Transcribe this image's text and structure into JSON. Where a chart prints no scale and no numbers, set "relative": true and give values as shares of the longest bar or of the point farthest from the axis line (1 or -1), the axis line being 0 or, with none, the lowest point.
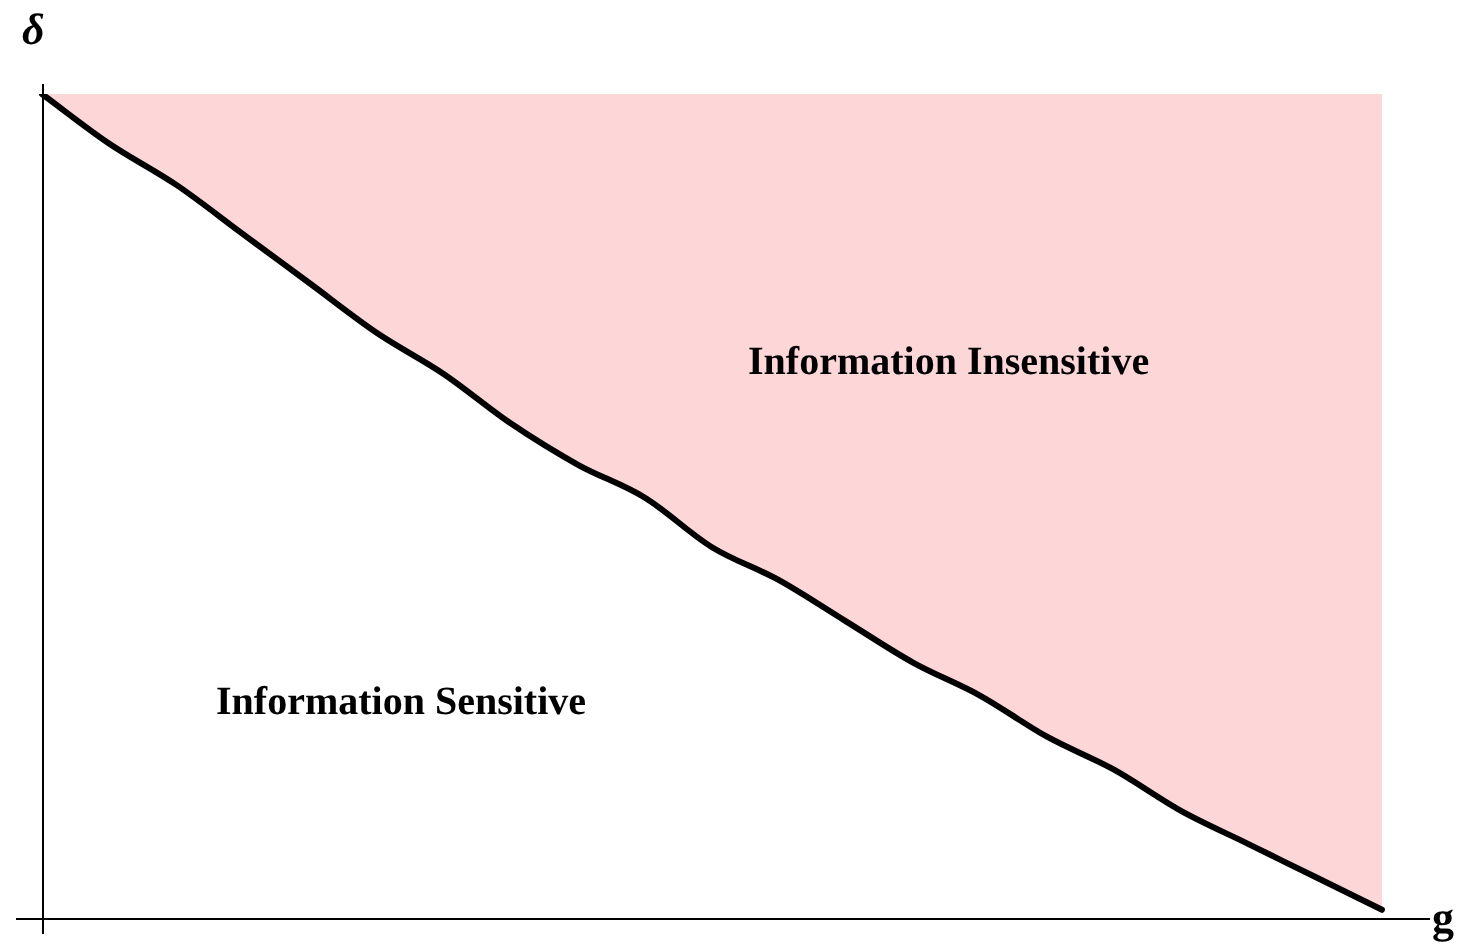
{
  "chart_data": {
    "type": "line",
    "relative": true,
    "xlabel": "g",
    "ylabel": "δ",
    "categories": [
      null,
      null,
      null,
      null,
      null,
      null,
      null,
      null,
      null,
      null,
      null,
      null,
      null,
      null,
      null,
      null,
      null,
      null,
      null,
      null,
      null
    ],
    "series": [
      {
        "color": "#000000",
        "values": [
          1,
          0.94,
          0.89,
          0.83,
          0.77,
          0.71,
          0.66,
          0.6,
          0.55,
          0.51,
          0.45,
          0.41,
          0.36,
          0.31,
          0.27,
          0.22,
          0.18,
          0.13,
          0.09,
          0.05,
          0.01
        ],
        "lower": [
          1,
          0.94,
          0.89,
          0.83,
          0.77,
          0.71,
          0.66,
          0.6,
          0.55,
          0.51,
          0.45,
          0.41,
          0.36,
          0.31,
          0.27,
          0.22,
          0.18,
          0.13,
          0.09,
          0.05,
          0.01
        ],
        "upper": [
          1,
          1,
          1,
          1,
          1,
          1,
          1,
          1,
          1,
          1,
          1,
          1,
          1,
          1,
          1,
          1,
          1,
          1,
          1,
          1,
          1
        ]
      }
    ],
    "annotations": [
      "Information Insensitive",
      "Information Sensitive"
    ],
    "legend": false,
    "marker": "none",
    "line_style": "solid"
  }
}
